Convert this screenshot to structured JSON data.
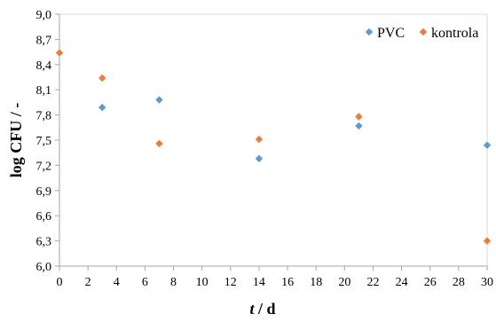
{
  "chart_data": {
    "type": "scatter",
    "xlabel": "t / d",
    "ylabel": "log CFU / -",
    "xlim": [
      0,
      30
    ],
    "ylim": [
      6.0,
      9.0
    ],
    "xticks": [
      0,
      2,
      4,
      6,
      8,
      10,
      12,
      14,
      16,
      18,
      20,
      22,
      24,
      26,
      28,
      30
    ],
    "yticks": [
      6.0,
      6.3,
      6.6,
      6.9,
      7.2,
      7.5,
      7.8,
      8.1,
      8.4,
      8.7,
      9.0
    ],
    "ytick_labels": [
      "6,0",
      "6,3",
      "6,6",
      "6,9",
      "7,2",
      "7,5",
      "7,8",
      "8,1",
      "8,4",
      "8,7",
      "9,0"
    ],
    "grid": false,
    "legend": "top-right",
    "series": [
      {
        "name": "PVC",
        "color": "#5B9BD5",
        "marker": "diamond",
        "points": [
          {
            "x": 3,
            "y": 7.89
          },
          {
            "x": 7,
            "y": 7.98
          },
          {
            "x": 14,
            "y": 7.28
          },
          {
            "x": 21,
            "y": 7.67
          },
          {
            "x": 30,
            "y": 7.44
          }
        ]
      },
      {
        "name": "kontrola",
        "color": "#ED7D31",
        "marker": "diamond",
        "points": [
          {
            "x": 0,
            "y": 8.54
          },
          {
            "x": 3,
            "y": 8.24
          },
          {
            "x": 7,
            "y": 7.46
          },
          {
            "x": 14,
            "y": 7.51
          },
          {
            "x": 21,
            "y": 7.78
          },
          {
            "x": 30,
            "y": 6.3
          }
        ]
      }
    ]
  }
}
